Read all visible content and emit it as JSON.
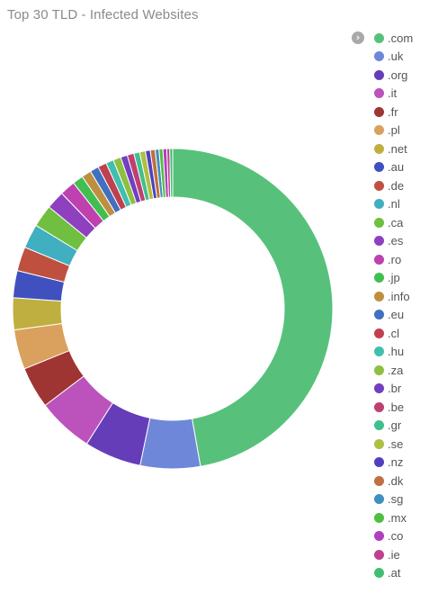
{
  "title": "Top 30 TLD - Infected Websites",
  "legend_toggle_icon": "chevron-right-icon",
  "chart_data": {
    "type": "pie",
    "donut": true,
    "title": "Top 30 TLD - Infected Websites",
    "legend_position": "right",
    "series": [
      {
        "name": ".com",
        "value": 48.4,
        "color": "#57c17b"
      },
      {
        "name": ".uk",
        "value": 6.2,
        "color": "#6f87d8"
      },
      {
        "name": ".org",
        "value": 5.9,
        "color": "#663db8"
      },
      {
        "name": ".it",
        "value": 5.8,
        "color": "#bc52bc"
      },
      {
        "name": ".fr",
        "value": 4.3,
        "color": "#9e3533"
      },
      {
        "name": ".pl",
        "value": 4.1,
        "color": "#daa05d"
      },
      {
        "name": ".net",
        "value": 3.3,
        "color": "#bfaf40"
      },
      {
        "name": ".au",
        "value": 2.8,
        "color": "#4050bf"
      },
      {
        "name": ".de",
        "value": 2.5,
        "color": "#bf5040"
      },
      {
        "name": ".nl",
        "value": 2.5,
        "color": "#40afbf"
      },
      {
        "name": ".ca",
        "value": 2.3,
        "color": "#70bf40"
      },
      {
        "name": ".es",
        "value": 1.9,
        "color": "#8f40bf"
      },
      {
        "name": ".ro",
        "value": 1.6,
        "color": "#bf40af"
      },
      {
        "name": ".jp",
        "value": 1.1,
        "color": "#40bf50"
      },
      {
        "name": ".info",
        "value": 1.0,
        "color": "#bf8f40"
      },
      {
        "name": ".eu",
        "value": 0.9,
        "color": "#4070bf"
      },
      {
        "name": ".cl",
        "value": 0.9,
        "color": "#bf4050"
      },
      {
        "name": ".hu",
        "value": 0.8,
        "color": "#40bfaf"
      },
      {
        "name": ".za",
        "value": 0.8,
        "color": "#8fbf40"
      },
      {
        "name": ".br",
        "value": 0.7,
        "color": "#7040bf"
      },
      {
        "name": ".be",
        "value": 0.7,
        "color": "#bf4070"
      },
      {
        "name": ".gr",
        "value": 0.6,
        "color": "#40bf8f"
      },
      {
        "name": ".se",
        "value": 0.6,
        "color": "#afbf40"
      },
      {
        "name": ".nz",
        "value": 0.5,
        "color": "#5040bf"
      },
      {
        "name": ".dk",
        "value": 0.5,
        "color": "#bf7040"
      },
      {
        "name": ".sg",
        "value": 0.4,
        "color": "#408fbf"
      },
      {
        "name": ".mx",
        "value": 0.4,
        "color": "#50bf40"
      },
      {
        "name": ".co",
        "value": 0.4,
        "color": "#af40bf"
      },
      {
        "name": ".ie",
        "value": 0.3,
        "color": "#bf408f"
      },
      {
        "name": ".at",
        "value": 0.3,
        "color": "#40bf70"
      }
    ]
  }
}
